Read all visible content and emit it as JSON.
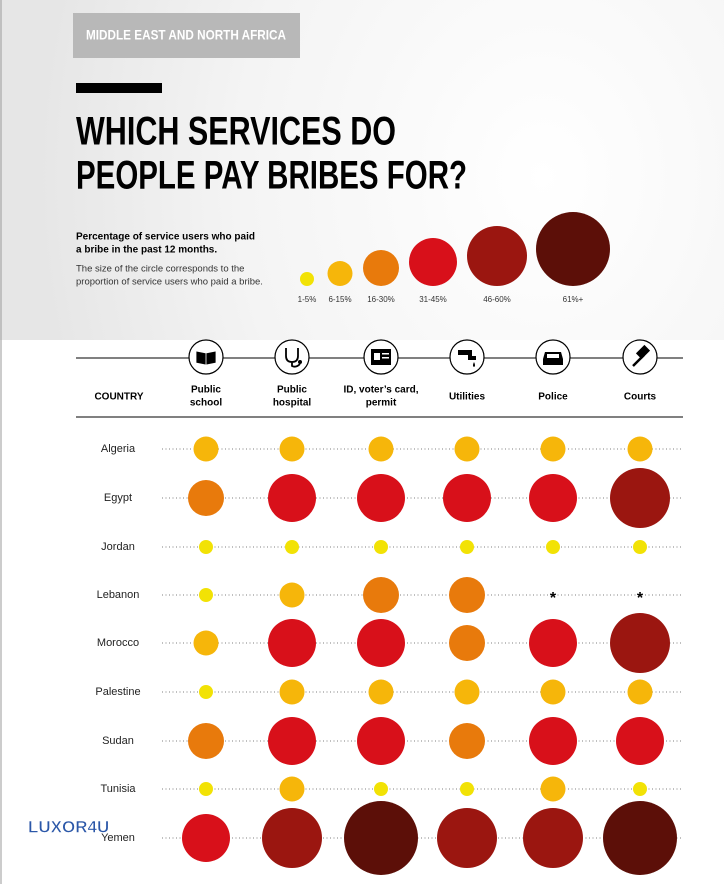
{
  "header": {
    "region": "MIDDLE EAST AND NORTH AFRICA",
    "title": [
      "WHICH SERVICES DO",
      "PEOPLE PAY BRIBES FOR?"
    ]
  },
  "legend": {
    "heading": [
      "Percentage of service users who paid",
      "a bribe in the past 12 months."
    ],
    "note": [
      "The size of the circle corresponds to the",
      "proportion of service users who paid a bribe."
    ],
    "levels": [
      {
        "label": "1-5%",
        "color": "#f2e205"
      },
      {
        "label": "6-15%",
        "color": "#f6b60a"
      },
      {
        "label": "16-30%",
        "color": "#e87a0c"
      },
      {
        "label": "31-45%",
        "color": "#d8101a"
      },
      {
        "label": "46-60%",
        "color": "#9b1610"
      },
      {
        "label": "61%+",
        "color": "#5c0f08"
      }
    ]
  },
  "table": {
    "country_header": "COUNTRY",
    "columns": [
      [
        "Public",
        "school"
      ],
      [
        "Public",
        "hospital"
      ],
      [
        "ID, voter’s card,",
        "permit"
      ],
      [
        "Utilities"
      ],
      [
        "Police"
      ],
      [
        "Courts"
      ]
    ],
    "rows": [
      {
        "country": "Algeria",
        "cells": [
          "6-15%",
          "6-15%",
          "6-15%",
          "6-15%",
          "6-15%",
          "6-15%"
        ]
      },
      {
        "country": "Egypt",
        "cells": [
          "16-30%",
          "31-45%",
          "31-45%",
          "31-45%",
          "31-45%",
          "46-60%"
        ]
      },
      {
        "country": "Jordan",
        "cells": [
          "1-5%",
          "1-5%",
          "1-5%",
          "1-5%",
          "1-5%",
          "1-5%"
        ]
      },
      {
        "country": "Lebanon",
        "cells": [
          "1-5%",
          "6-15%",
          "16-30%",
          "16-30%",
          "*",
          "*"
        ]
      },
      {
        "country": "Morocco",
        "cells": [
          "6-15%",
          "31-45%",
          "31-45%",
          "16-30%",
          "31-45%",
          "46-60%"
        ]
      },
      {
        "country": "Palestine",
        "cells": [
          "1-5%",
          "6-15%",
          "6-15%",
          "6-15%",
          "6-15%",
          "6-15%"
        ]
      },
      {
        "country": "Sudan",
        "cells": [
          "16-30%",
          "31-45%",
          "31-45%",
          "16-30%",
          "31-45%",
          "31-45%"
        ]
      },
      {
        "country": "Tunisia",
        "cells": [
          "1-5%",
          "6-15%",
          "1-5%",
          "1-5%",
          "6-15%",
          "1-5%"
        ]
      },
      {
        "country": "Yemen",
        "cells": [
          "31-45%",
          "46-60%",
          "61%+",
          "46-60%",
          "46-60%",
          "61%+"
        ]
      }
    ]
  },
  "watermark": "LUXOR4U"
}
